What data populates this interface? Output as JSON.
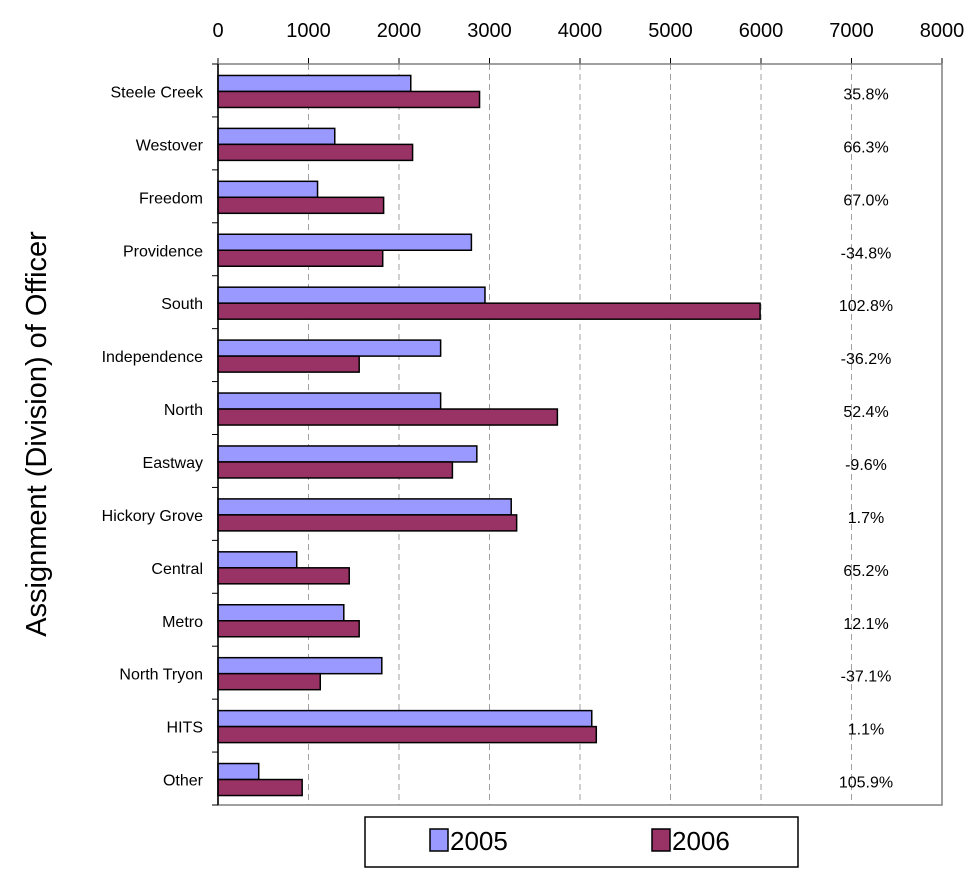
{
  "chart_data": {
    "type": "bar",
    "orientation": "horizontal",
    "ylabel": "Assignment (Division) of Officer",
    "xlabel": "",
    "xlim": [
      0,
      8000
    ],
    "x_ticks": [
      "0",
      "1000",
      "2000",
      "3000",
      "4000",
      "5000",
      "6000",
      "7000",
      "8000"
    ],
    "x_axis_position": "top",
    "grid": "vertical dashed",
    "legend_position": "bottom",
    "categories": [
      "Steele Creek",
      "Westover",
      "Freedom",
      "Providence",
      "South",
      "Independence",
      "North",
      "Eastway",
      "Hickory Grove",
      "Central",
      "Metro",
      "North Tryon",
      "HITS",
      "Other"
    ],
    "series": [
      {
        "name": "2005",
        "color": "#9999ff",
        "values": [
          2130,
          1290,
          1100,
          2800,
          2950,
          2460,
          2460,
          2860,
          3240,
          870,
          1390,
          1810,
          4130,
          450
        ]
      },
      {
        "name": "2006",
        "color": "#993366",
        "values": [
          2890,
          2150,
          1830,
          1820,
          5990,
          1560,
          3750,
          2590,
          3300,
          1450,
          1560,
          1130,
          4180,
          930
        ]
      }
    ],
    "annotations": [
      "35.8%",
      "66.3%",
      "67.0%",
      "-34.8%",
      "102.8%",
      "-36.2%",
      "52.4%",
      "-9.6%",
      "1.7%",
      "65.2%",
      "12.1%",
      "-37.1%",
      "1.1%",
      "105.9%"
    ]
  }
}
